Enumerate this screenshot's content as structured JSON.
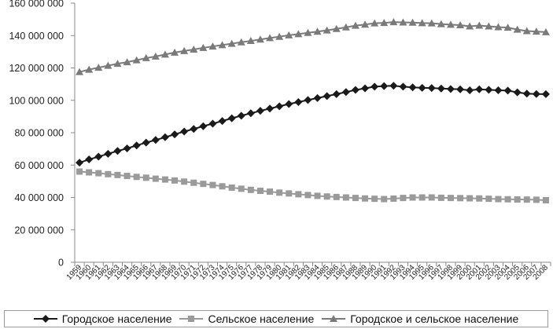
{
  "chart_data": {
    "type": "line",
    "title": "",
    "xlabel": "",
    "ylabel": "",
    "ylim": [
      0,
      160000000
    ],
    "y_ticks": [
      "0",
      "20 000 000",
      "40 000 000",
      "60 000 000",
      "80 000 000",
      "100 000 000",
      "120 000 000",
      "140 000 000",
      "160 000 000"
    ],
    "grid": false,
    "legend_position": "bottom",
    "x": [
      "1959",
      "1960",
      "1961",
      "1962",
      "1963",
      "1964",
      "1965",
      "1966",
      "1967",
      "1968",
      "1969",
      "1970",
      "1971",
      "1972",
      "1973",
      "1974",
      "1975",
      "1976",
      "1977",
      "1978",
      "1979",
      "1980",
      "1981",
      "1982",
      "1983",
      "1984",
      "1985",
      "1986",
      "1987",
      "1988",
      "1989",
      "1990",
      "1991",
      "1992",
      "1993",
      "1994",
      "1995",
      "1996",
      "1997",
      "1998",
      "1999",
      "2000",
      "2001",
      "2002",
      "2003",
      "2004",
      "2005",
      "2006",
      "2007",
      "2008"
    ],
    "series": [
      {
        "name": "Городское население",
        "color": "#1a1a1a",
        "marker": "diamond",
        "values": [
          61500000,
          63500000,
          65200000,
          67000000,
          68700000,
          70300000,
          72100000,
          73900000,
          75500000,
          77200000,
          79000000,
          80700000,
          82300000,
          84000000,
          85600000,
          87200000,
          88900000,
          90500000,
          92000000,
          93500000,
          94900000,
          96300000,
          97700000,
          98900000,
          100200000,
          101400000,
          102600000,
          103800000,
          105100000,
          106400000,
          107400000,
          108400000,
          108800000,
          109000000,
          108400000,
          108000000,
          107700000,
          107600000,
          107300000,
          107000000,
          106800000,
          106200000,
          106800000,
          106500000,
          106200000,
          106000000,
          104900000,
          104100000,
          103900000,
          103800000
        ]
      },
      {
        "name": "Сельское население",
        "color": "#9a9a9a",
        "marker": "square",
        "values": [
          56000000,
          55500000,
          55000000,
          54400000,
          53900000,
          53300000,
          52700000,
          52200000,
          51600000,
          51100000,
          50500000,
          49800000,
          49100000,
          48400000,
          47700000,
          46900000,
          46100000,
          45400000,
          44700000,
          44100000,
          43600000,
          43000000,
          42500000,
          42000000,
          41500000,
          41000000,
          40600000,
          40300000,
          40000000,
          39700000,
          39400000,
          39200000,
          39000000,
          39300000,
          39700000,
          40000000,
          40000000,
          40000000,
          39800000,
          39700000,
          39600000,
          39500000,
          39400000,
          39200000,
          39000000,
          38900000,
          38800000,
          38700000,
          38600000,
          38300000
        ]
      },
      {
        "name": "Городское и сельское население",
        "color": "#7a7a7a",
        "marker": "triangle",
        "values": [
          117500000,
          119000000,
          120200000,
          121400000,
          122600000,
          123600000,
          124800000,
          126100000,
          127100000,
          128300000,
          129500000,
          130500000,
          131400000,
          132400000,
          133300000,
          134100000,
          135000000,
          135900000,
          136700000,
          137600000,
          138500000,
          139300000,
          140200000,
          140900000,
          141700000,
          142400000,
          143200000,
          144100000,
          145100000,
          146100000,
          146800000,
          147600000,
          147800000,
          148300000,
          148100000,
          148000000,
          147700000,
          147600000,
          147100000,
          146700000,
          146400000,
          145700000,
          146200000,
          145700000,
          145200000,
          144900000,
          143700000,
          142800000,
          142500000,
          142100000
        ]
      }
    ]
  }
}
